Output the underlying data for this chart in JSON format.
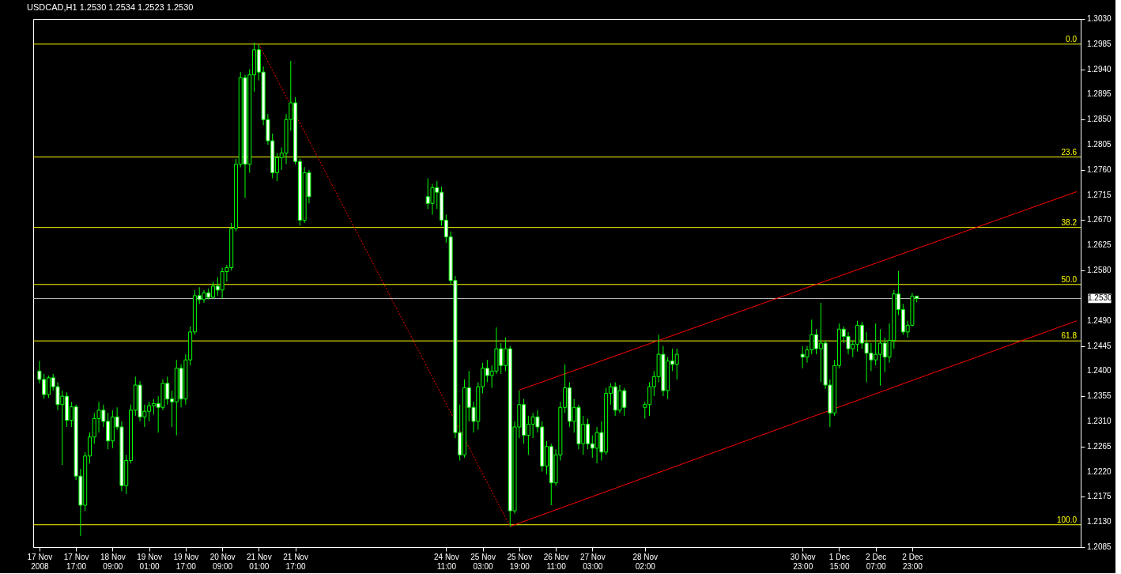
{
  "chart_data": {
    "type": "candlestick",
    "title": "USDCAD,H1  1.2530 1.2534 1.2523 1.2530",
    "color": "#00ff00",
    "x": [
      "2008-11-17T01:00",
      "2008-11-17T03:00",
      "2008-11-17T05:00",
      "2008-11-17T07:00",
      "2008-11-17T09:00",
      "2008-11-17T11:00",
      "2008-11-17T13:00",
      "2008-11-17T15:00",
      "2008-11-17T17:00",
      "2008-11-17T19:00",
      "2008-11-17T21:00",
      "2008-11-17T23:00",
      "2008-11-18T01:00",
      "2008-11-18T03:00",
      "2008-11-18T05:00",
      "2008-11-18T07:00",
      "2008-11-18T09:00",
      "2008-11-18T11:00",
      "2008-11-18T13:00",
      "2008-11-18T15:00",
      "2008-11-18T17:00",
      "2008-11-18T19:00",
      "2008-11-18T21:00",
      "2008-11-18T23:00",
      "2008-11-19T01:00",
      "2008-11-19T03:00",
      "2008-11-19T05:00",
      "2008-11-19T07:00",
      "2008-11-19T09:00",
      "2008-11-19T11:00",
      "2008-11-19T13:00",
      "2008-11-19T15:00",
      "2008-11-19T17:00",
      "2008-11-19T19:00",
      "2008-11-19T21:00",
      "2008-11-19T23:00",
      "2008-11-20T01:00",
      "2008-11-20T03:00",
      "2008-11-20T05:00",
      "2008-11-20T07:00",
      "2008-11-20T09:00",
      "2008-11-20T11:00",
      "2008-11-20T13:00",
      "2008-11-20T15:00",
      "2008-11-20T17:00",
      "2008-11-20T19:00",
      "2008-11-20T21:00",
      "2008-11-20T23:00",
      "2008-11-21T01:00",
      "2008-11-21T03:00",
      "2008-11-21T05:00",
      "2008-11-21T07:00",
      "2008-11-21T09:00",
      "2008-11-21T11:00",
      "2008-11-21T13:00",
      "2008-11-21T15:00",
      "2008-11-21T17:00",
      "2008-11-21T19:00",
      "2008-11-21T21:00",
      "2008-11-21T23:00",
      "2008-11-24T03:00",
      "2008-11-24T05:00",
      "2008-11-24T07:00",
      "2008-11-24T09:00",
      "2008-11-24T11:00",
      "2008-11-24T13:00",
      "2008-11-24T15:00",
      "2008-11-24T17:00",
      "2008-11-24T19:00",
      "2008-11-24T21:00",
      "2008-11-24T23:00",
      "2008-11-25T01:00",
      "2008-11-25T03:00",
      "2008-11-25T05:00",
      "2008-11-25T07:00",
      "2008-11-25T09:00",
      "2008-11-25T11:00",
      "2008-11-25T13:00",
      "2008-11-25T15:00",
      "2008-11-25T17:00",
      "2008-11-25T19:00",
      "2008-11-25T21:00",
      "2008-11-25T23:00",
      "2008-11-26T01:00",
      "2008-11-26T03:00",
      "2008-11-26T05:00",
      "2008-11-26T07:00",
      "2008-11-26T09:00",
      "2008-11-26T11:00",
      "2008-11-26T13:00",
      "2008-11-26T15:00",
      "2008-11-26T17:00",
      "2008-11-26T19:00",
      "2008-11-26T21:00",
      "2008-11-26T23:00",
      "2008-11-27T01:00",
      "2008-11-27T03:00",
      "2008-11-27T05:00",
      "2008-11-27T07:00",
      "2008-11-27T09:00",
      "2008-11-27T11:00",
      "2008-11-27T13:00",
      "2008-11-27T15:00",
      "2008-11-27T17:00",
      "2008-11-28T02:00",
      "2008-11-28T04:00",
      "2008-11-28T06:00",
      "2008-11-28T08:00",
      "2008-11-28T10:00",
      "2008-11-28T12:00",
      "2008-11-28T14:00",
      "2008-11-28T16:00",
      "2008-11-30T23:00",
      "2008-12-01T01:00",
      "2008-12-01T03:00",
      "2008-12-01T05:00",
      "2008-12-01T07:00",
      "2008-12-01T09:00",
      "2008-12-01T11:00",
      "2008-12-01T13:00",
      "2008-12-01T15:00",
      "2008-12-01T17:00",
      "2008-12-01T19:00",
      "2008-12-01T21:00",
      "2008-12-01T23:00",
      "2008-12-02T01:00",
      "2008-12-02T03:00",
      "2008-12-02T05:00",
      "2008-12-02T07:00",
      "2008-12-02T09:00",
      "2008-12-02T11:00",
      "2008-12-02T13:00",
      "2008-12-02T15:00",
      "2008-12-02T17:00",
      "2008-12-02T19:00",
      "2008-12-02T21:00",
      "2008-12-02T23:00",
      "2008-12-03T01:00"
    ],
    "ohlc": [
      [
        1.24,
        1.2418,
        1.2378,
        1.2385
      ],
      [
        1.2385,
        1.2395,
        1.235,
        1.2358
      ],
      [
        1.2358,
        1.2392,
        1.2352,
        1.2388
      ],
      [
        1.2388,
        1.2395,
        1.2365,
        1.2372
      ],
      [
        1.2372,
        1.238,
        1.233,
        1.234
      ],
      [
        1.234,
        1.2365,
        1.2232,
        1.2355
      ],
      [
        1.2355,
        1.2362,
        1.23,
        1.2312
      ],
      [
        1.2312,
        1.2345,
        1.23,
        1.2336
      ],
      [
        1.2336,
        1.234,
        1.2205,
        1.2212
      ],
      [
        1.2212,
        1.2225,
        1.2105,
        1.216
      ],
      [
        1.216,
        1.2255,
        1.215,
        1.2248
      ],
      [
        1.2248,
        1.229,
        1.2235,
        1.2282
      ],
      [
        1.2282,
        1.2325,
        1.227,
        1.2315
      ],
      [
        1.2315,
        1.2345,
        1.229,
        1.233
      ],
      [
        1.233,
        1.234,
        1.23,
        1.231
      ],
      [
        1.231,
        1.2325,
        1.226,
        1.2275
      ],
      [
        1.2275,
        1.233,
        1.2262,
        1.2318
      ],
      [
        1.2318,
        1.2335,
        1.2295,
        1.23
      ],
      [
        1.23,
        1.231,
        1.2185,
        1.2195
      ],
      [
        1.2195,
        1.225,
        1.218,
        1.224
      ],
      [
        1.224,
        1.234,
        1.2235,
        1.233
      ],
      [
        1.233,
        1.239,
        1.232,
        1.2375
      ],
      [
        1.2375,
        1.2382,
        1.231,
        1.2318
      ],
      [
        1.2318,
        1.234,
        1.23,
        1.2328
      ],
      [
        1.2328,
        1.2345,
        1.231,
        1.2338
      ],
      [
        1.2338,
        1.235,
        1.2322,
        1.2342
      ],
      [
        1.2342,
        1.2355,
        1.229,
        1.2335
      ],
      [
        1.2335,
        1.2385,
        1.233,
        1.2378
      ],
      [
        1.2378,
        1.239,
        1.234,
        1.235
      ],
      [
        1.235,
        1.2365,
        1.23,
        1.2345
      ],
      [
        1.2345,
        1.242,
        1.2285,
        1.2405
      ],
      [
        1.2405,
        1.2412,
        1.2335,
        1.235
      ],
      [
        1.235,
        1.243,
        1.234,
        1.242
      ],
      [
        1.242,
        1.248,
        1.241,
        1.247
      ],
      [
        1.247,
        1.2545,
        1.2465,
        1.2535
      ],
      [
        1.2535,
        1.255,
        1.252,
        1.2528
      ],
      [
        1.2528,
        1.2545,
        1.2522,
        1.254
      ],
      [
        1.254,
        1.2548,
        1.2528,
        1.2532
      ],
      [
        1.2532,
        1.256,
        1.253,
        1.2552
      ],
      [
        1.2552,
        1.2568,
        1.2535,
        1.2545
      ],
      [
        1.2545,
        1.2585,
        1.253,
        1.2578
      ],
      [
        1.2578,
        1.259,
        1.256,
        1.2585
      ],
      [
        1.2585,
        1.2665,
        1.258,
        1.2655
      ],
      [
        1.2655,
        1.278,
        1.265,
        1.277
      ],
      [
        1.277,
        1.2935,
        1.2765,
        1.2925
      ],
      [
        1.2925,
        1.293,
        1.271,
        1.277
      ],
      [
        1.277,
        1.294,
        1.2755,
        1.293
      ],
      [
        1.293,
        1.2988,
        1.29,
        1.2975
      ],
      [
        1.2975,
        1.2985,
        1.292,
        1.2935
      ],
      [
        1.2935,
        1.2945,
        1.284,
        1.285
      ],
      [
        1.285,
        1.286,
        1.2805,
        1.2812
      ],
      [
        1.2812,
        1.2825,
        1.2745,
        1.2755
      ],
      [
        1.2755,
        1.279,
        1.274,
        1.2782
      ],
      [
        1.2782,
        1.28,
        1.276,
        1.279
      ],
      [
        1.279,
        1.286,
        1.277,
        1.285
      ],
      [
        1.285,
        1.2955,
        1.283,
        1.288
      ],
      [
        1.288,
        1.289,
        1.277,
        1.2775
      ],
      [
        1.2775,
        1.278,
        1.266,
        1.267
      ],
      [
        1.267,
        1.2765,
        1.2665,
        1.2755
      ],
      [
        1.2755,
        1.276,
        1.27,
        1.2712
      ],
      [
        1.2712,
        1.2745,
        1.269,
        1.27
      ],
      [
        1.27,
        1.2735,
        1.268,
        1.2728
      ],
      [
        1.2728,
        1.274,
        1.269,
        1.272
      ],
      [
        1.272,
        1.273,
        1.266,
        1.267
      ],
      [
        1.267,
        1.268,
        1.263,
        1.264
      ],
      [
        1.264,
        1.265,
        1.2555,
        1.2562
      ],
      [
        1.2562,
        1.257,
        1.228,
        1.229
      ],
      [
        1.229,
        1.234,
        1.224,
        1.225
      ],
      [
        1.225,
        1.2385,
        1.2245,
        1.237
      ],
      [
        1.237,
        1.24,
        1.231,
        1.2335
      ],
      [
        1.2335,
        1.2345,
        1.229,
        1.231
      ],
      [
        1.231,
        1.238,
        1.2295,
        1.2372
      ],
      [
        1.2372,
        1.2415,
        1.236,
        1.2405
      ],
      [
        1.2405,
        1.242,
        1.238,
        1.2392
      ],
      [
        1.2392,
        1.241,
        1.237,
        1.24
      ],
      [
        1.24,
        1.2478,
        1.2395,
        1.244
      ],
      [
        1.244,
        1.245,
        1.2395,
        1.241
      ],
      [
        1.241,
        1.246,
        1.24,
        1.244
      ],
      [
        1.244,
        1.2445,
        1.2122,
        1.215
      ],
      [
        1.215,
        1.231,
        1.2145,
        1.23
      ],
      [
        1.23,
        1.2365,
        1.228,
        1.234
      ],
      [
        1.234,
        1.235,
        1.227,
        1.2285
      ],
      [
        1.2285,
        1.232,
        1.225,
        1.2305
      ],
      [
        1.2305,
        1.2325,
        1.228,
        1.2318
      ],
      [
        1.2318,
        1.233,
        1.229,
        1.23
      ],
      [
        1.23,
        1.231,
        1.222,
        1.223
      ],
      [
        1.223,
        1.2275,
        1.2215,
        1.2265
      ],
      [
        1.2265,
        1.227,
        1.216,
        1.22
      ],
      [
        1.22,
        1.226,
        1.2195,
        1.225
      ],
      [
        1.225,
        1.2345,
        1.224,
        1.2335
      ],
      [
        1.2335,
        1.2412,
        1.2325,
        1.237
      ],
      [
        1.237,
        1.238,
        1.23,
        1.231
      ],
      [
        1.231,
        1.235,
        1.229,
        1.2335
      ],
      [
        1.2335,
        1.234,
        1.226,
        1.227
      ],
      [
        1.227,
        1.232,
        1.225,
        1.2305
      ],
      [
        1.2305,
        1.2315,
        1.226,
        1.227
      ],
      [
        1.227,
        1.2285,
        1.2245,
        1.2262
      ],
      [
        1.2262,
        1.23,
        1.2235,
        1.229
      ],
      [
        1.229,
        1.231,
        1.224,
        1.2255
      ],
      [
        1.2255,
        1.237,
        1.225,
        1.236
      ],
      [
        1.236,
        1.2378,
        1.234,
        1.2372
      ],
      [
        1.2372,
        1.238,
        1.232,
        1.233
      ],
      [
        1.233,
        1.2375,
        1.2325,
        1.2365
      ],
      [
        1.2365,
        1.237,
        1.232,
        1.2335
      ],
      [
        1.2335,
        1.2345,
        1.2315,
        1.234
      ],
      [
        1.234,
        1.238,
        1.232,
        1.2372
      ],
      [
        1.2372,
        1.24,
        1.2355,
        1.239
      ],
      [
        1.239,
        1.2465,
        1.238,
        1.243
      ],
      [
        1.243,
        1.2445,
        1.2355,
        1.2365
      ],
      [
        1.2365,
        1.2425,
        1.235,
        1.2418
      ],
      [
        1.2418,
        1.244,
        1.24,
        1.2412
      ],
      [
        1.2412,
        1.244,
        1.2385,
        1.243
      ],
      [
        1.243,
        1.2445,
        1.2405,
        1.2425
      ],
      [
        1.2425,
        1.2445,
        1.2415,
        1.2438
      ],
      [
        1.2438,
        1.2492,
        1.243,
        1.2465
      ],
      [
        1.2465,
        1.2475,
        1.243,
        1.244
      ],
      [
        1.244,
        1.2522,
        1.238,
        1.245
      ],
      [
        1.245,
        1.2455,
        1.2368,
        1.2375
      ],
      [
        1.2375,
        1.2385,
        1.23,
        1.2325
      ],
      [
        1.2325,
        1.242,
        1.232,
        1.241
      ],
      [
        1.241,
        1.2485,
        1.2405,
        1.2475
      ],
      [
        1.2475,
        1.248,
        1.245,
        1.2462
      ],
      [
        1.2462,
        1.247,
        1.243,
        1.244
      ],
      [
        1.244,
        1.2455,
        1.2425,
        1.2448
      ],
      [
        1.2448,
        1.249,
        1.2435,
        1.2482
      ],
      [
        1.2482,
        1.2488,
        1.244,
        1.245
      ],
      [
        1.245,
        1.247,
        1.238,
        1.2432
      ],
      [
        1.2432,
        1.245,
        1.24,
        1.242
      ],
      [
        1.242,
        1.2485,
        1.241,
        1.243
      ],
      [
        1.243,
        1.2475,
        1.2374,
        1.245
      ],
      [
        1.245,
        1.246,
        1.2398,
        1.2425
      ],
      [
        1.2425,
        1.2485,
        1.2415,
        1.2455
      ],
      [
        1.2455,
        1.2545,
        1.244,
        1.2538
      ],
      [
        1.2538,
        1.2579,
        1.25,
        1.251
      ],
      [
        1.251,
        1.252,
        1.2465,
        1.247
      ],
      [
        1.247,
        1.249,
        1.246,
        1.2482
      ],
      [
        1.2482,
        1.254,
        1.248,
        1.2534
      ],
      [
        1.2534,
        1.2534,
        1.2523,
        1.253
      ]
    ],
    "series": [
      {
        "type": "line",
        "color": "#ff0000",
        "line_style": "dotted",
        "x": [
          "2008-11-21T01:00",
          "2008-11-25T15:00"
        ],
        "values": [
          1.2985,
          1.2122
        ]
      },
      {
        "type": "line",
        "color": "#ff0000",
        "line_style": "solid",
        "x": [
          "2008-11-25T19:00",
          "2008-12-05T23:00"
        ],
        "values": [
          1.2366,
          1.2721
        ]
      },
      {
        "type": "line",
        "color": "#ff0000",
        "line_style": "solid",
        "x": [
          "2008-11-25T15:00",
          "2008-12-05T23:00"
        ],
        "values": [
          1.2122,
          1.249
        ]
      }
    ],
    "ref_lines": [
      {
        "axis": "y",
        "value": 1.2985,
        "color": "#ffff00"
      },
      {
        "axis": "y",
        "value": 1.2783,
        "color": "#ffff00"
      },
      {
        "axis": "y",
        "value": 1.2657,
        "color": "#ffff00"
      },
      {
        "axis": "y",
        "value": 1.2555,
        "color": "#ffff00"
      },
      {
        "axis": "y",
        "value": 1.2454,
        "color": "#ffff00"
      },
      {
        "axis": "y",
        "value": 1.2125,
        "color": "#ffff00"
      },
      {
        "axis": "y",
        "value": 1.253,
        "label": "1.2530",
        "color": "#c0c0c0"
      }
    ],
    "annotations": [
      {
        "text": "0.0",
        "x": "2008-12-05T23:00",
        "y": 1.2985
      },
      {
        "text": "23.6",
        "x": "2008-12-05T23:00",
        "y": 1.2783
      },
      {
        "text": "38.2",
        "x": "2008-12-05T23:00",
        "y": 1.2657
      },
      {
        "text": "50.0",
        "x": "2008-12-05T23:00",
        "y": 1.2555
      },
      {
        "text": "61.8",
        "x": "2008-12-05T23:00",
        "y": 1.2454
      },
      {
        "text": "100.0",
        "x": "2008-12-05T23:00",
        "y": 1.2125
      }
    ],
    "xlim": [
      "2008-11-17T00:00",
      "2008-12-05T23:00"
    ],
    "xticks": [
      {
        "value": "2008-11-17T01:00",
        "label": "17 Nov 2008"
      },
      {
        "value": "2008-11-17T17:00",
        "label": "17 Nov 17:00"
      },
      {
        "value": "2008-11-18T09:00",
        "label": "18 Nov 09:00"
      },
      {
        "value": "2008-11-19T01:00",
        "label": "19 Nov 01:00"
      },
      {
        "value": "2008-11-19T17:00",
        "label": "19 Nov 17:00"
      },
      {
        "value": "2008-11-20T09:00",
        "label": "20 Nov 09:00"
      },
      {
        "value": "2008-11-21T01:00",
        "label": "21 Nov 01:00"
      },
      {
        "value": "2008-11-21T17:00",
        "label": "21 Nov 17:00"
      },
      {
        "value": "2008-11-24T11:00",
        "label": "24 Nov 11:00"
      },
      {
        "value": "2008-11-25T03:00",
        "label": "25 Nov 03:00"
      },
      {
        "value": "2008-11-25T19:00",
        "label": "25 Nov 19:00"
      },
      {
        "value": "2008-11-26T11:00",
        "label": "26 Nov 11:00"
      },
      {
        "value": "2008-11-27T03:00",
        "label": "27 Nov 03:00"
      },
      {
        "value": "2008-11-28T02:00",
        "label": "28 Nov 02:00"
      },
      {
        "value": "2008-11-30T23:00",
        "label": "30 Nov 23:00"
      },
      {
        "value": "2008-12-01T15:00",
        "label": "1 Dec 15:00"
      },
      {
        "value": "2008-12-02T07:00",
        "label": "2 Dec 07:00"
      },
      {
        "value": "2008-12-02T23:00",
        "label": "2 Dec 23:00"
      }
    ],
    "ylim": [
      1.2085,
      1.303
    ],
    "yticks": [
      {
        "value": 1.303,
        "label": "1.3030"
      },
      1.2985,
      {
        "value": 1.294,
        "label": "1.2940"
      },
      1.2895,
      {
        "value": 1.285,
        "label": "1.2850"
      },
      1.2805,
      {
        "value": 1.276,
        "label": "1.2760"
      },
      1.2715,
      {
        "value": 1.267,
        "label": "1.2670"
      },
      1.2625,
      {
        "value": 1.258,
        "label": "1.2580"
      },
      {
        "value": 1.249,
        "label": "1.2490"
      },
      1.2445,
      {
        "value": 1.24,
        "label": "1.2400"
      },
      1.2355,
      {
        "value": 1.231,
        "label": "1.2310"
      },
      1.2265,
      {
        "value": 1.222,
        "label": "1.2220"
      },
      1.2175,
      {
        "value": 1.213,
        "label": "1.2130"
      },
      1.2085
    ]
  }
}
